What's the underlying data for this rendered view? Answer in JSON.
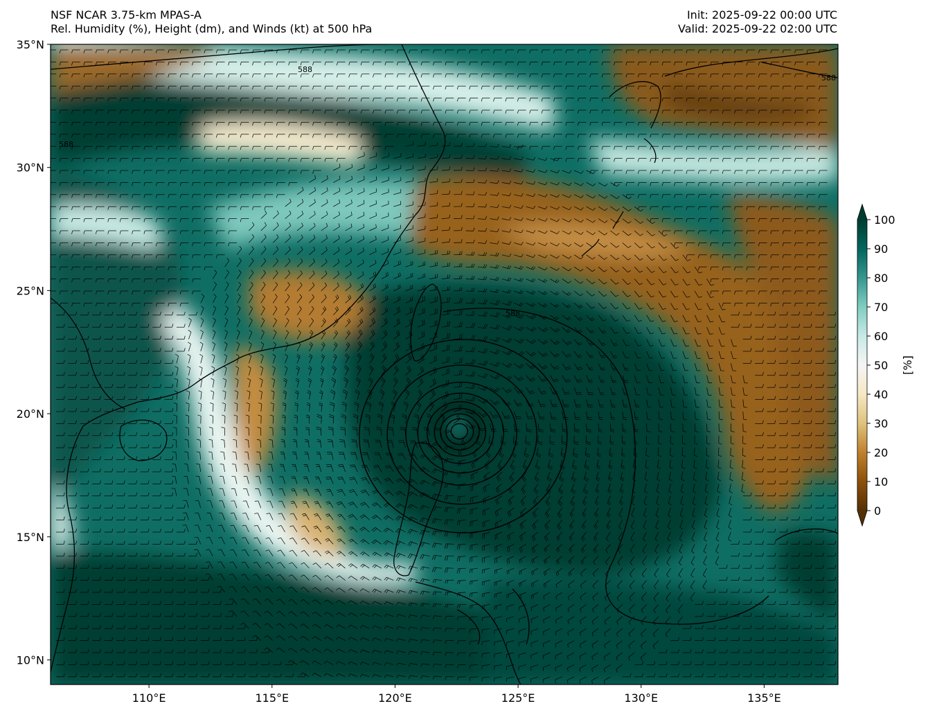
{
  "header": {
    "model": "NSF NCAR 3.75-km MPAS-A",
    "fields": "Rel. Humidity (%), Height (dm), and Winds (kt) at 500 hPa",
    "init": "Init: 2025-09-22 00:00 UTC",
    "valid": "Valid: 2025-09-22 02:00 UTC"
  },
  "map": {
    "lon_range": [
      106,
      138
    ],
    "lat_range": [
      9,
      35
    ],
    "lat_ticks": [
      "10°N",
      "15°N",
      "20°N",
      "25°N",
      "30°N",
      "35°N"
    ],
    "lon_ticks": [
      "110°E",
      "115°E",
      "120°E",
      "125°E",
      "130°E",
      "135°E"
    ],
    "lat_tick_values": [
      10,
      15,
      20,
      25,
      30,
      35
    ],
    "lon_tick_values": [
      110,
      115,
      120,
      125,
      130,
      135
    ],
    "height_contour_label": "588",
    "cyclone_center": {
      "lon": 122.6,
      "lat": 19.3
    }
  },
  "colorbar": {
    "label": "[%]",
    "ticks": [
      "0",
      "10",
      "20",
      "30",
      "40",
      "50",
      "60",
      "70",
      "80",
      "90",
      "100"
    ],
    "colors": [
      "#543005",
      "#8c510a",
      "#bf812d",
      "#dfc27d",
      "#f6e8c3",
      "#f5f5f5",
      "#c7eae5",
      "#80cdc1",
      "#35978f",
      "#01665e",
      "#003c30"
    ]
  }
}
